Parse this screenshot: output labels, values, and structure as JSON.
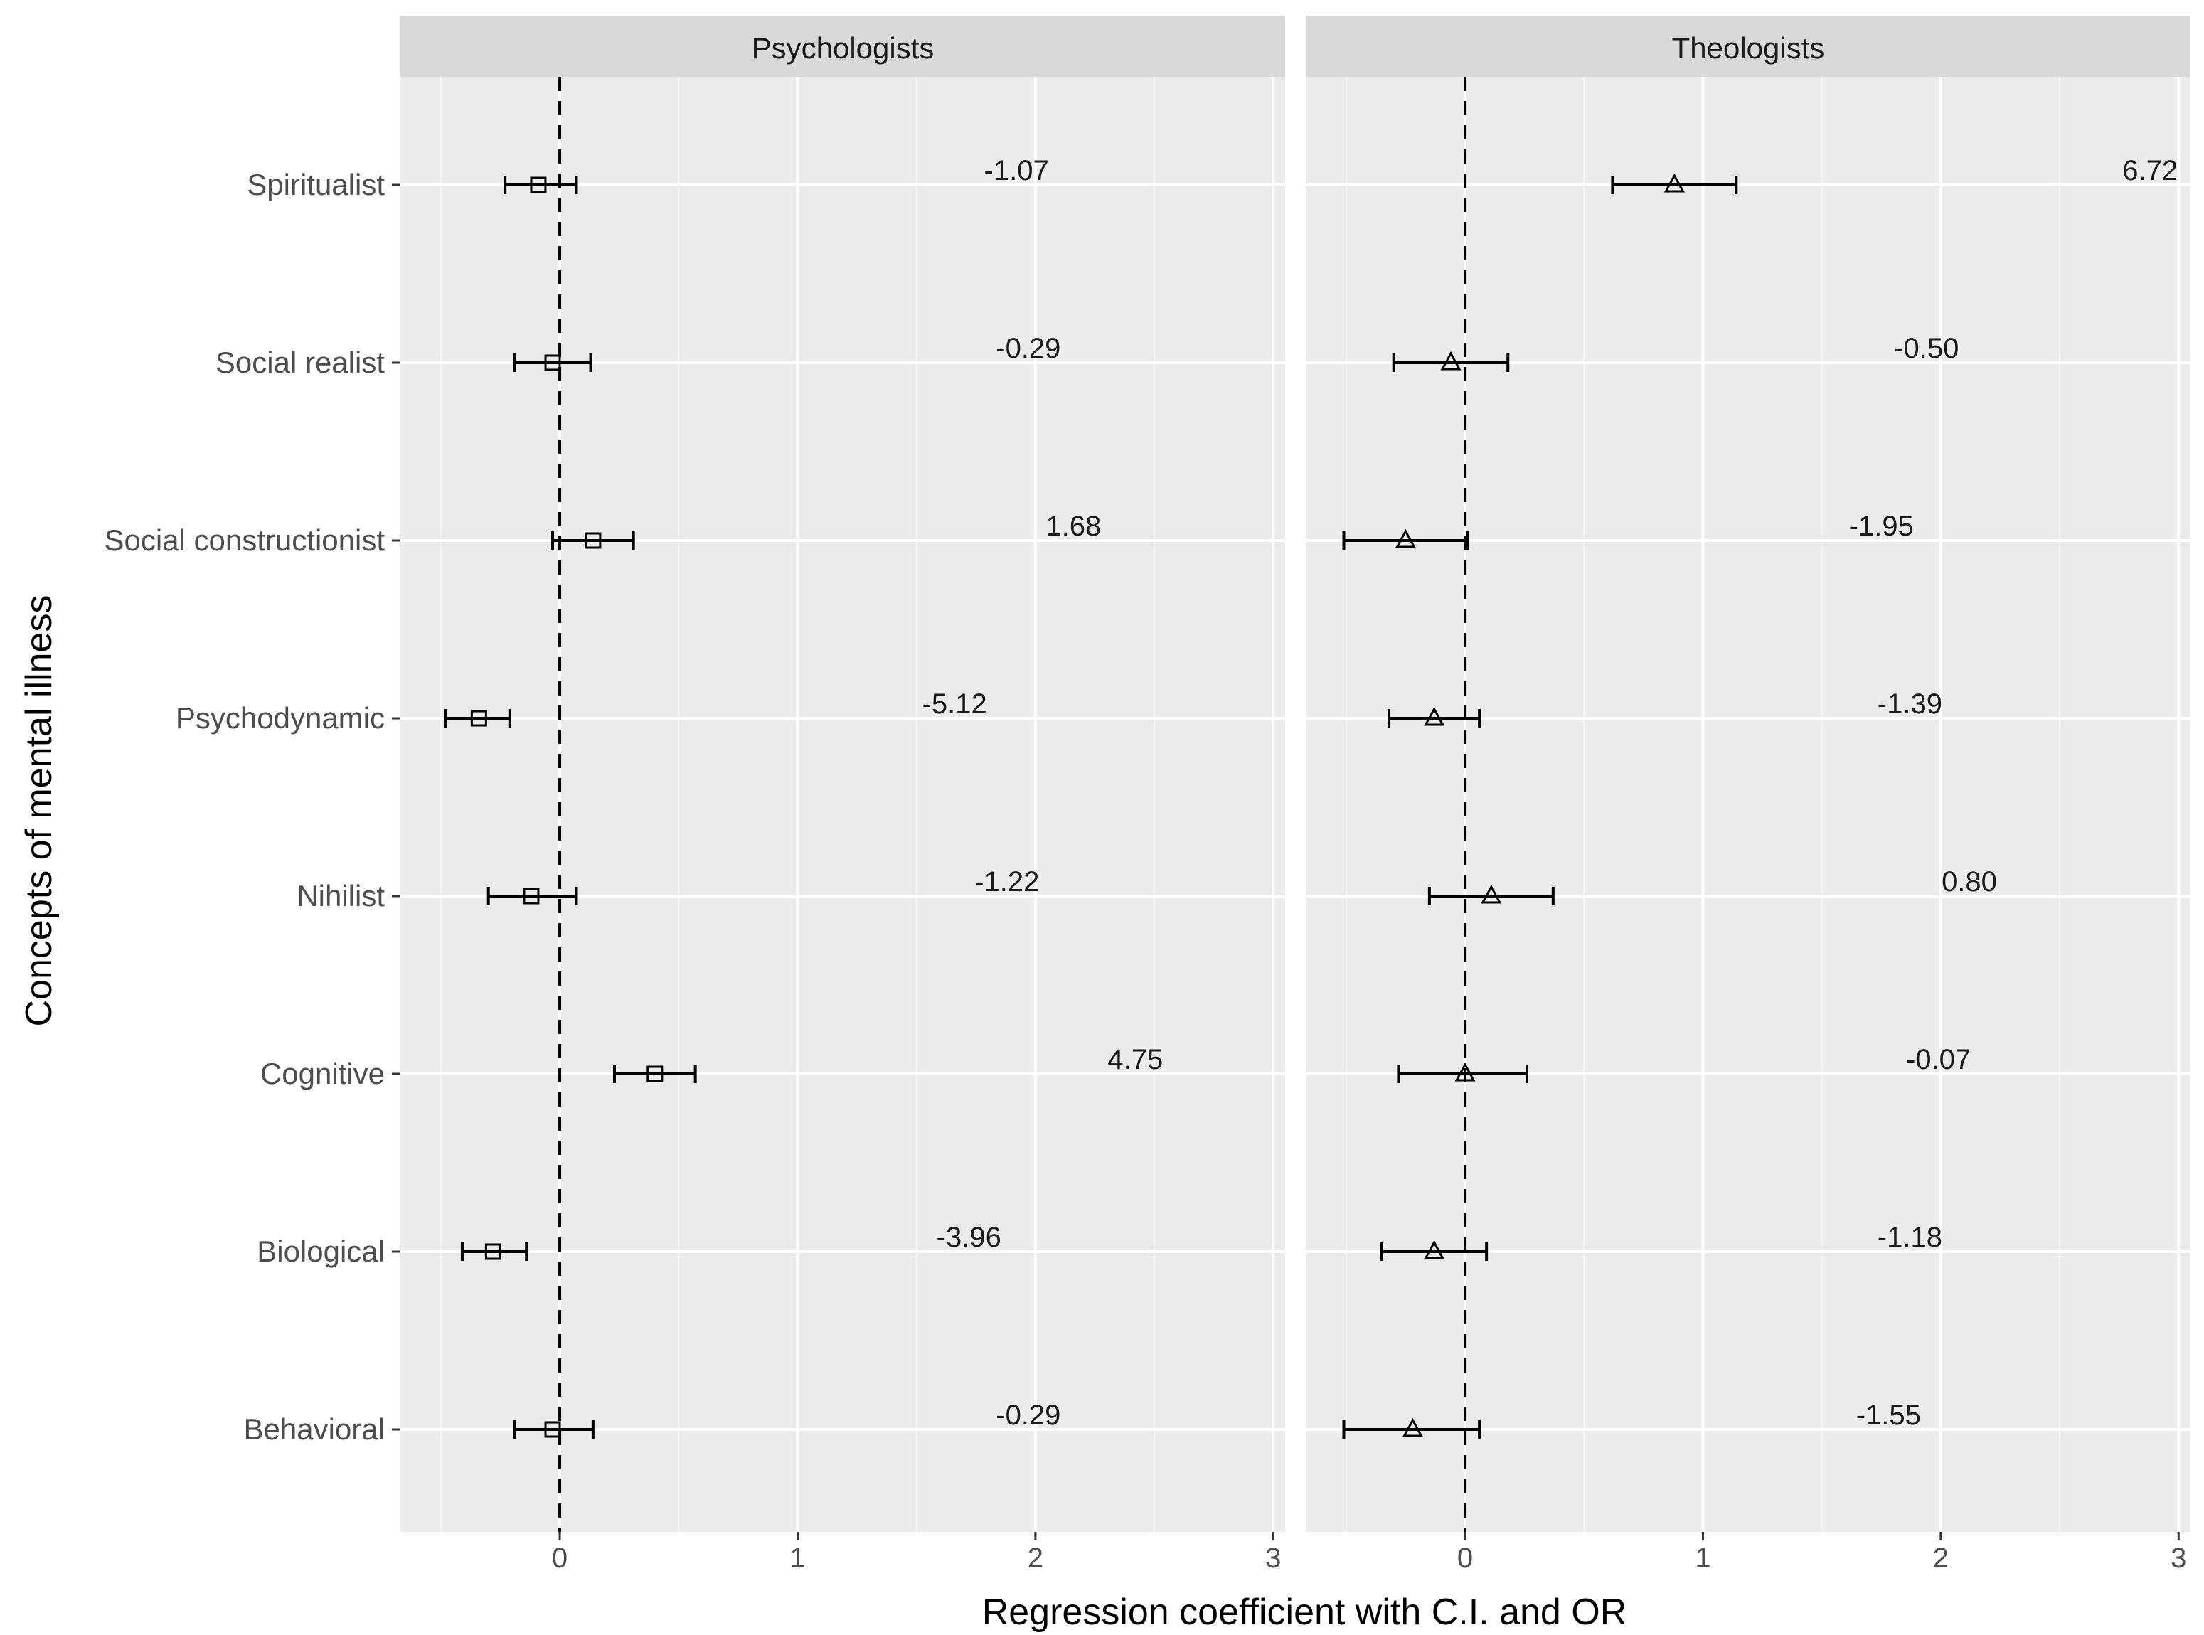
{
  "chart_data": {
    "type": "forest",
    "xlabel": "Regression coefficient with C.I. and OR",
    "ylabel": "Concepts of mental illness",
    "xlim": [
      -0.67,
      3.05
    ],
    "x_ticks": [
      0,
      1,
      2,
      3
    ],
    "x_tick_labels": [
      "0",
      "1",
      "2",
      "3"
    ],
    "reference_line_x": 0,
    "categories": [
      "Spiritualist",
      "Social realist",
      "Social constructionist",
      "Psychodynamic",
      "Nihilist",
      "Cognitive",
      "Biological",
      "Behavioral"
    ],
    "panels": [
      {
        "name": "Psychologists",
        "marker": "square",
        "estimates": [
          -0.09,
          -0.03,
          0.14,
          -0.34,
          -0.12,
          0.4,
          -0.28,
          -0.03
        ],
        "ci_low": [
          -0.23,
          -0.19,
          -0.03,
          -0.48,
          -0.3,
          0.23,
          -0.41,
          -0.19
        ],
        "ci_high": [
          0.07,
          0.13,
          0.31,
          -0.21,
          0.07,
          0.57,
          -0.14,
          0.14
        ],
        "or_labels": [
          "-1.07",
          "-0.29",
          "1.68",
          "-5.12",
          "-1.22",
          "4.75",
          "-3.96",
          "-0.29"
        ],
        "label_x": [
          1.92,
          1.97,
          2.16,
          1.66,
          1.88,
          2.42,
          1.72,
          1.97
        ]
      },
      {
        "name": "Theologists",
        "marker": "triangle",
        "estimates": [
          0.88,
          -0.06,
          -0.25,
          -0.13,
          0.11,
          0.0,
          -0.13,
          -0.22
        ],
        "ci_low": [
          0.62,
          -0.3,
          -0.51,
          -0.32,
          -0.15,
          -0.28,
          -0.35,
          -0.51
        ],
        "ci_high": [
          1.14,
          0.18,
          0.01,
          0.06,
          0.37,
          0.26,
          0.09,
          0.06
        ],
        "or_labels": [
          "6.72",
          "-0.50",
          "-1.95",
          "-1.39",
          "0.80",
          "-0.07",
          "-1.18",
          "-1.55"
        ],
        "label_x": [
          2.88,
          1.94,
          1.75,
          1.87,
          2.12,
          1.99,
          1.87,
          1.78
        ]
      }
    ]
  }
}
